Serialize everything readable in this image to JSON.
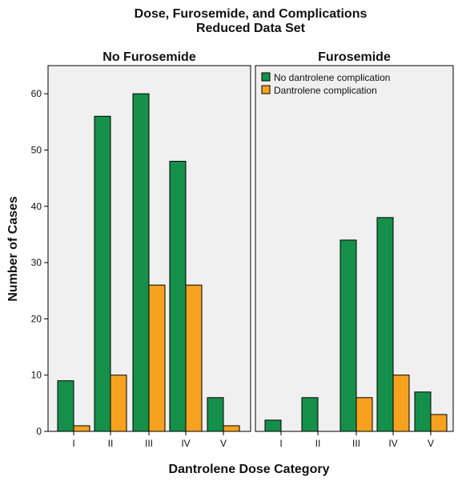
{
  "chart_data": {
    "type": "bar",
    "title": "Dose, Furosemide, and Complications",
    "subtitle": "Reduced Data Set",
    "xlabel": "Dantrolene Dose Category",
    "ylabel": "Number of Cases",
    "ylim": [
      0,
      65
    ],
    "yticks": [
      "0",
      "10",
      "20",
      "30",
      "40",
      "50",
      "60"
    ],
    "categories": [
      "I",
      "II",
      "III",
      "IV",
      "V"
    ],
    "legend_placement": "top-left of right panel",
    "colors": {
      "No dantrolene complication": "#14904a",
      "Dantrolene complication": "#f7a21e"
    },
    "legend": [
      "No dantrolene complication",
      "Dantrolene complication"
    ],
    "panels": [
      {
        "name": "No Furosemide",
        "series": [
          {
            "name": "No dantrolene complication",
            "values": [
              9,
              56,
              60,
              48,
              6
            ]
          },
          {
            "name": "Dantrolene complication",
            "values": [
              1,
              10,
              26,
              26,
              1
            ]
          }
        ]
      },
      {
        "name": "Furosemide",
        "series": [
          {
            "name": "No dantrolene complication",
            "values": [
              2,
              6,
              34,
              38,
              7
            ]
          },
          {
            "name": "Dantrolene complication",
            "values": [
              0,
              0,
              6,
              10,
              3
            ]
          }
        ]
      }
    ]
  }
}
